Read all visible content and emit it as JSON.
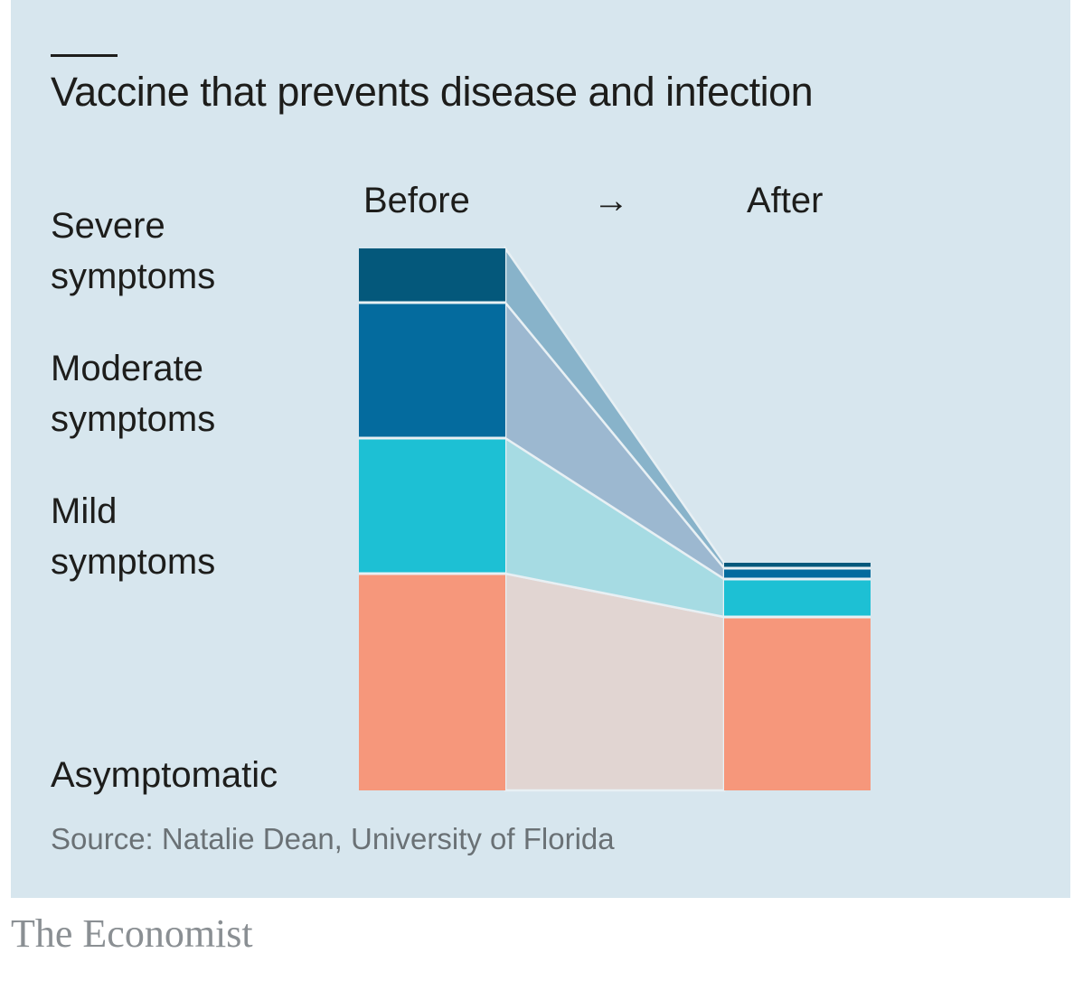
{
  "title": "Vaccine that prevents disease and infection",
  "column_labels": {
    "before": "Before",
    "arrow": "→",
    "after": "After"
  },
  "category_labels": {
    "severe": "Severe\nsymptoms",
    "moderate": "Moderate\nsymptoms",
    "mild": "Mild\nsymptoms",
    "asymptomatic": "Asymptomatic"
  },
  "source": "Source: Natalie Dean, University of Florida",
  "brand": "The Economist",
  "colors": {
    "background": "#d7e6ee",
    "severe": "#04587b",
    "moderate": "#046b9e",
    "mild": "#1dc0d4",
    "asymptomatic": "#f6977b",
    "flow_severe": "#88b3ca",
    "flow_moderate": "#9cb8d0",
    "flow_mild": "#a6dbe3",
    "flow_asymptomatic": "#e1d5d2"
  },
  "chart_data": {
    "type": "bar",
    "categories": [
      "Before",
      "After"
    ],
    "series": [
      {
        "name": "Asymptomatic",
        "values": [
          40,
          32
        ]
      },
      {
        "name": "Mild symptoms",
        "values": [
          25,
          7
        ]
      },
      {
        "name": "Moderate symptoms",
        "values": [
          25,
          2
        ]
      },
      {
        "name": "Severe symptoms",
        "values": [
          10,
          1
        ]
      }
    ]
  }
}
